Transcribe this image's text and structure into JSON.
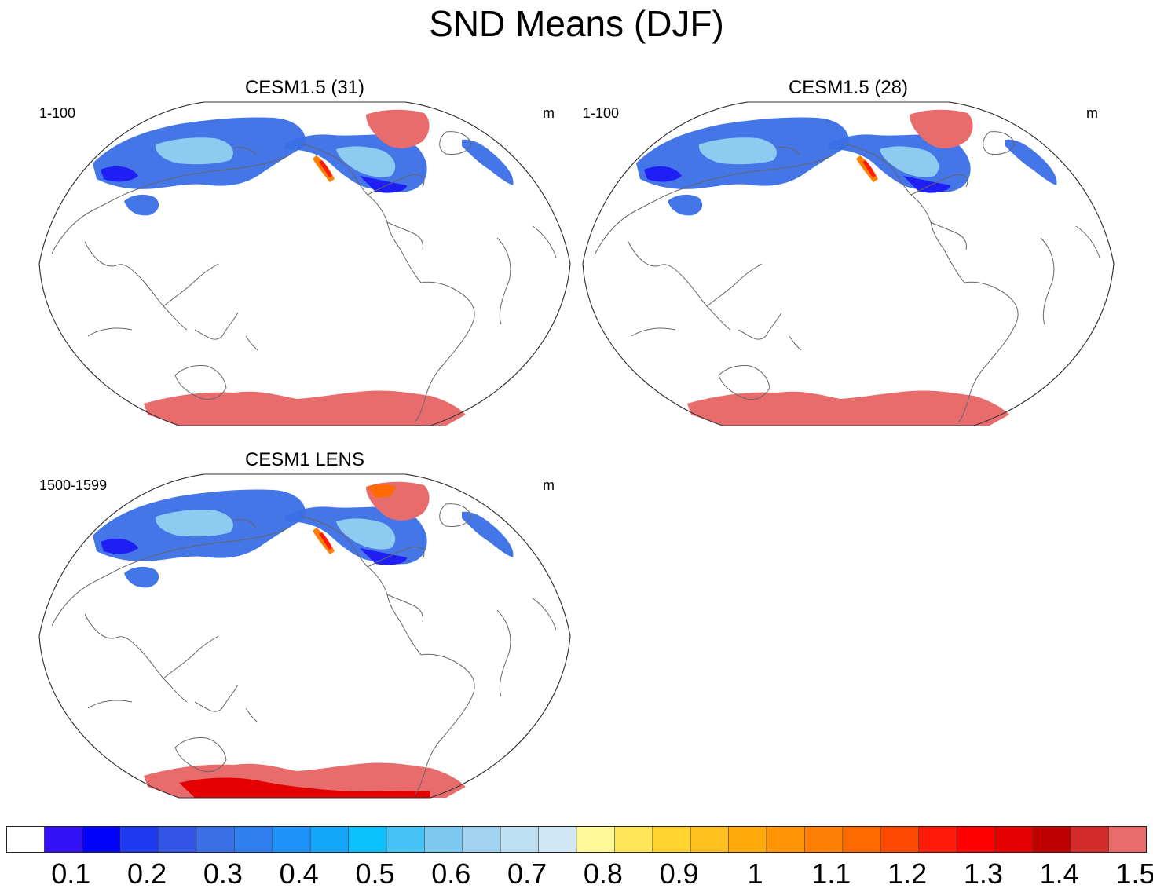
{
  "title": "SND Means (DJF)",
  "panels": [
    {
      "title": "CESM1.5 (31)",
      "left_label": "1-100",
      "right_label": "m",
      "variant": "a"
    },
    {
      "title": "CESM1.5 (28)",
      "left_label": "1-100",
      "right_label": "m",
      "variant": "b"
    },
    {
      "title": "CESM1 LENS",
      "left_label": "1500-1599",
      "right_label": "m",
      "variant": "c"
    }
  ],
  "colorbar": {
    "colors": [
      "#ffffff",
      "#3310f5",
      "#0303fb",
      "#1f3bf0",
      "#3355e6",
      "#3a6fe6",
      "#2f7ff0",
      "#1e92f8",
      "#14a6f8",
      "#0cc0fb",
      "#46c2f5",
      "#7cc8ee",
      "#a2d4f2",
      "#bfdff3",
      "#d0e8f6",
      "#fff89a",
      "#ffe658",
      "#ffd42e",
      "#ffbf1f",
      "#ffaa0a",
      "#ff9505",
      "#ff7f05",
      "#ff6a00",
      "#ff4a05",
      "#ff1a0a",
      "#ff0000",
      "#e40000",
      "#c00000",
      "#d42a2a",
      "#e86c6c"
    ],
    "labels": [
      "0.1",
      "0.2",
      "0.3",
      "0.4",
      "0.5",
      "0.6",
      "0.7",
      "0.8",
      "0.9",
      "1",
      "1.1",
      "1.2",
      "1.3",
      "1.4",
      "1.5"
    ]
  }
}
